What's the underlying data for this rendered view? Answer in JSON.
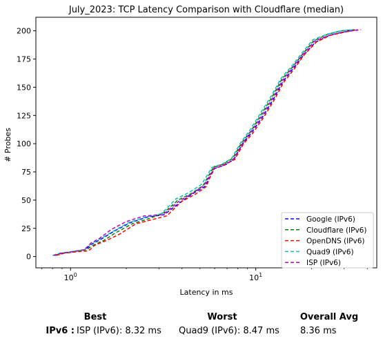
{
  "chart_data": {
    "type": "line",
    "title": "July_2023: TCP Latency Comparison with Cloudflare (median)",
    "xlabel": "Latency in ms",
    "ylabel": "# Probes",
    "x_scale": "log",
    "xlim": [
      0.65,
      45
    ],
    "ylim": [
      -10,
      212
    ],
    "x_ticks": [
      1,
      10
    ],
    "x_tick_labels": [
      "10^0",
      "10^1"
    ],
    "y_ticks": [
      0,
      25,
      50,
      75,
      100,
      125,
      150,
      175,
      200
    ],
    "legend_position": "lower-right",
    "grid": false,
    "series": [
      {
        "name": "Google (IPv6)",
        "color": "#0000ff",
        "points": [
          [
            0.82,
            1
          ],
          [
            0.9,
            3
          ],
          [
            1.0,
            4
          ],
          [
            1.2,
            6
          ],
          [
            1.3,
            11
          ],
          [
            1.45,
            15
          ],
          [
            1.7,
            22
          ],
          [
            2.1,
            30
          ],
          [
            2.6,
            35
          ],
          [
            3.2,
            37
          ],
          [
            3.9,
            48
          ],
          [
            4.6,
            56
          ],
          [
            5.3,
            62
          ],
          [
            6.0,
            78
          ],
          [
            6.8,
            81
          ],
          [
            7.6,
            86
          ],
          [
            8.5,
            100
          ],
          [
            9.5,
            110
          ],
          [
            11.0,
            125
          ],
          [
            12.5,
            140
          ],
          [
            14.0,
            155
          ],
          [
            16.0,
            167
          ],
          [
            18.0,
            178
          ],
          [
            21.0,
            190
          ],
          [
            25.0,
            196
          ],
          [
            30.0,
            199
          ],
          [
            35.0,
            201
          ]
        ]
      },
      {
        "name": "Cloudflare (IPv6)",
        "color": "#008000",
        "points": [
          [
            0.83,
            1
          ],
          [
            0.92,
            3
          ],
          [
            1.02,
            4
          ],
          [
            1.22,
            6
          ],
          [
            1.32,
            10
          ],
          [
            1.5,
            14
          ],
          [
            1.75,
            21
          ],
          [
            2.15,
            29
          ],
          [
            2.7,
            34
          ],
          [
            3.2,
            39
          ],
          [
            3.8,
            50
          ],
          [
            4.5,
            56
          ],
          [
            5.2,
            63
          ],
          [
            5.9,
            79
          ],
          [
            6.7,
            82
          ],
          [
            7.5,
            87
          ],
          [
            8.4,
            101
          ],
          [
            9.4,
            111
          ],
          [
            10.8,
            127
          ],
          [
            12.3,
            142
          ],
          [
            13.8,
            157
          ],
          [
            15.8,
            168
          ],
          [
            17.8,
            179
          ],
          [
            20.5,
            191
          ],
          [
            24.5,
            197
          ],
          [
            29.0,
            200
          ],
          [
            34.0,
            201
          ]
        ]
      },
      {
        "name": "OpenDNS (IPv6)",
        "color": "#ff0000",
        "points": [
          [
            0.84,
            1
          ],
          [
            0.93,
            3
          ],
          [
            1.05,
            4
          ],
          [
            1.25,
            5
          ],
          [
            1.35,
            10
          ],
          [
            1.55,
            14
          ],
          [
            1.85,
            20
          ],
          [
            2.25,
            29
          ],
          [
            2.8,
            33
          ],
          [
            3.3,
            36
          ],
          [
            4.0,
            49
          ],
          [
            4.7,
            55
          ],
          [
            5.4,
            62
          ],
          [
            6.0,
            80
          ],
          [
            6.9,
            82
          ],
          [
            7.7,
            86
          ],
          [
            8.6,
            100
          ],
          [
            9.6,
            109
          ],
          [
            11.1,
            124
          ],
          [
            12.6,
            139
          ],
          [
            14.1,
            154
          ],
          [
            16.1,
            166
          ],
          [
            18.1,
            178
          ],
          [
            21.2,
            190
          ],
          [
            25.2,
            196
          ],
          [
            30.5,
            199
          ],
          [
            35.5,
            201
          ]
        ]
      },
      {
        "name": "Quad9 (IPv6)",
        "color": "#00bfbf",
        "points": [
          [
            0.8,
            1
          ],
          [
            0.88,
            3
          ],
          [
            0.98,
            4
          ],
          [
            1.18,
            6
          ],
          [
            1.28,
            11
          ],
          [
            1.42,
            15
          ],
          [
            1.68,
            22
          ],
          [
            2.05,
            30
          ],
          [
            2.55,
            35
          ],
          [
            3.1,
            38
          ],
          [
            3.7,
            51
          ],
          [
            4.4,
            57
          ],
          [
            5.1,
            64
          ],
          [
            5.8,
            79
          ],
          [
            6.6,
            82
          ],
          [
            7.4,
            87
          ],
          [
            8.3,
            101
          ],
          [
            9.3,
            112
          ],
          [
            10.7,
            128
          ],
          [
            12.2,
            143
          ],
          [
            13.7,
            158
          ],
          [
            15.7,
            169
          ],
          [
            17.7,
            180
          ],
          [
            20.3,
            192
          ],
          [
            24.3,
            197
          ],
          [
            28.8,
            200
          ],
          [
            33.8,
            201
          ]
        ]
      },
      {
        "name": "ISP (IPv6)",
        "color": "#bf00bf",
        "points": [
          [
            0.81,
            1
          ],
          [
            0.89,
            3
          ],
          [
            0.99,
            4
          ],
          [
            1.19,
            6
          ],
          [
            1.29,
            12
          ],
          [
            1.43,
            16
          ],
          [
            1.66,
            24
          ],
          [
            2.0,
            31
          ],
          [
            2.5,
            36
          ],
          [
            3.15,
            37
          ],
          [
            3.85,
            49
          ],
          [
            4.55,
            56
          ],
          [
            5.25,
            63
          ],
          [
            5.95,
            78
          ],
          [
            6.75,
            81
          ],
          [
            7.55,
            86
          ],
          [
            8.45,
            100
          ],
          [
            9.45,
            111
          ],
          [
            10.9,
            126
          ],
          [
            12.4,
            141
          ],
          [
            13.9,
            156
          ],
          [
            15.9,
            168
          ],
          [
            17.9,
            179
          ],
          [
            20.8,
            191
          ],
          [
            24.8,
            196
          ],
          [
            29.5,
            199
          ],
          [
            37.0,
            201
          ]
        ]
      }
    ]
  },
  "summary": {
    "headers": {
      "best": "Best",
      "worst": "Worst",
      "overall": "Overall Avg"
    },
    "row_label": "IPv6 :",
    "best": "ISP (IPv6): 8.32 ms",
    "worst": "Quad9 (IPv6): 8.47 ms",
    "overall": "8.36 ms"
  }
}
